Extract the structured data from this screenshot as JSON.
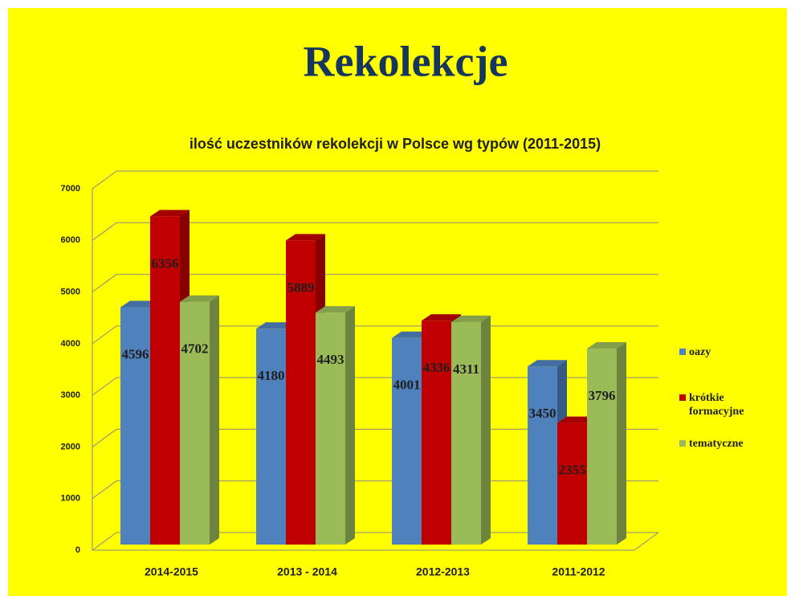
{
  "title": "Rekolekcje",
  "chart_data": {
    "type": "bar3d",
    "title": "ilość uczestników rekolekcji w Polsce wg typów (2011-2015)",
    "categories": [
      "2014-2015",
      "2013 - 2014",
      "2012-2013",
      "2011-2012"
    ],
    "series": [
      {
        "name": "oazy",
        "color": "#4f81bd",
        "values": [
          4596,
          4180,
          4001,
          3450
        ]
      },
      {
        "name": "krótkie formacyjne",
        "color": "#c00000",
        "values": [
          6356,
          5889,
          4336,
          2355
        ]
      },
      {
        "name": "tematyczne",
        "color": "#9bbb59",
        "values": [
          4702,
          4493,
          4311,
          3796
        ]
      }
    ],
    "ylim": [
      0,
      7000
    ],
    "yticks": [
      0,
      1000,
      2000,
      3000,
      4000,
      5000,
      6000,
      7000
    ],
    "grid": true,
    "legend": "right"
  }
}
